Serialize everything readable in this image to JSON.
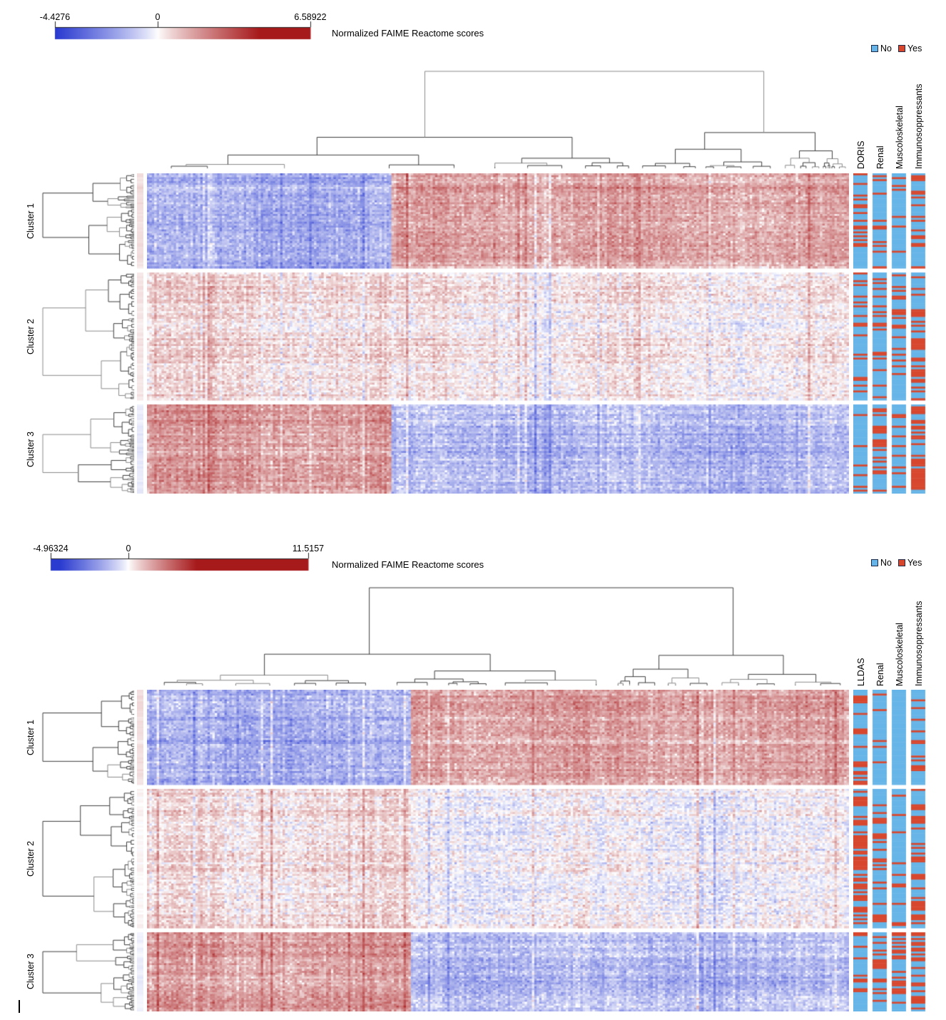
{
  "panels": [
    {
      "colorbar": {
        "min_label": "-4.4276",
        "zero_label": "0",
        "max_label": "6.58922",
        "title": "Normalized FAIME Reactome scores"
      },
      "legend": {
        "no_label": "No",
        "yes_label": "Yes"
      },
      "cluster_labels": [
        "Cluster 1",
        "Cluster 2",
        "Cluster 3"
      ],
      "annotation_labels": [
        "DORIS",
        "Renal",
        "Muscoloskeletal",
        "Immunosoppressants"
      ]
    },
    {
      "colorbar": {
        "min_label": "-4.96324",
        "zero_label": "0",
        "max_label": "11.5157",
        "title": "Normalized FAIME Reactome scores"
      },
      "legend": {
        "no_label": "No",
        "yes_label": "Yes"
      },
      "cluster_labels": [
        "Cluster 1",
        "Cluster 2",
        "Cluster 3"
      ],
      "annotation_labels": [
        "LLDAS",
        "Renal",
        "Muscoloskeletal",
        "Immunosoppressants"
      ]
    }
  ],
  "chart_data": [
    {
      "type": "heatmap",
      "title": "Normalized FAIME Reactome scores",
      "scale": {
        "min": -4.4276,
        "zero": 0,
        "max": 6.58922,
        "saturation_abs": 4.4,
        "min_color": "#2a3bd0",
        "zero_color": "#ffffff",
        "max_color": "#a71a1c"
      },
      "columns": 290,
      "col_split_fraction": 0.347,
      "row_clusters": [
        {
          "label": "Cluster 1",
          "rows": 49,
          "mean_left": -1.55,
          "mean_right": 1.45
        },
        {
          "label": "Cluster 2",
          "rows": 66,
          "mean_left": 0.5,
          "mean_right": 0.18
        },
        {
          "label": "Cluster 3",
          "rows": 46,
          "mean_left": 1.65,
          "mean_right": -1.35
        }
      ],
      "column_annotations": [
        {
          "label": "DORIS",
          "yes_fraction_by_cluster": [
            0.3,
            0.25,
            0.1
          ]
        },
        {
          "label": "Renal",
          "yes_fraction_by_cluster": [
            0.12,
            0.3,
            0.3
          ]
        },
        {
          "label": "Muscoloskeletal",
          "yes_fraction_by_cluster": [
            0.12,
            0.25,
            0.28
          ]
        },
        {
          "label": "Immunosoppressants",
          "yes_fraction_by_cluster": [
            0.25,
            0.45,
            0.6
          ]
        }
      ],
      "annotation_colors": {
        "no": "#67b5e8",
        "yes": "#d7472e"
      },
      "legend_entries": [
        "No",
        "Yes"
      ],
      "legend_position": "top-right",
      "dendrograms": {
        "columns": true,
        "rows_per_cluster": true
      }
    },
    {
      "type": "heatmap",
      "title": "Normalized FAIME Reactome scores",
      "scale": {
        "min": -4.96324,
        "zero": 0,
        "max": 11.5157,
        "saturation_abs": 4.4,
        "min_color": "#2a3bd0",
        "zero_color": "#ffffff",
        "max_color": "#a71a1c"
      },
      "columns": 290,
      "col_split_fraction": 0.375,
      "row_clusters": [
        {
          "label": "Cluster 1",
          "rows": 49,
          "mean_left": -1.45,
          "mean_right": 1.55
        },
        {
          "label": "Cluster 2",
          "rows": 72,
          "mean_left": 0.45,
          "mean_right": -0.15
        },
        {
          "label": "Cluster 3",
          "rows": 41,
          "mean_left": 1.6,
          "mean_right": -1.3
        }
      ],
      "column_annotations": [
        {
          "label": "LLDAS",
          "yes_fraction_by_cluster": [
            0.45,
            0.5,
            0.12
          ]
        },
        {
          "label": "Renal",
          "yes_fraction_by_cluster": [
            0.15,
            0.2,
            0.3
          ]
        },
        {
          "label": "Muscoloskeletal",
          "yes_fraction_by_cluster": [
            0.08,
            0.15,
            0.45
          ]
        },
        {
          "label": "Immunosoppressants",
          "yes_fraction_by_cluster": [
            0.25,
            0.35,
            0.5
          ]
        }
      ],
      "annotation_colors": {
        "no": "#67b5e8",
        "yes": "#d7472e"
      },
      "legend_entries": [
        "No",
        "Yes"
      ],
      "legend_position": "top-right",
      "dendrograms": {
        "columns": true,
        "rows_per_cluster": true
      }
    }
  ]
}
